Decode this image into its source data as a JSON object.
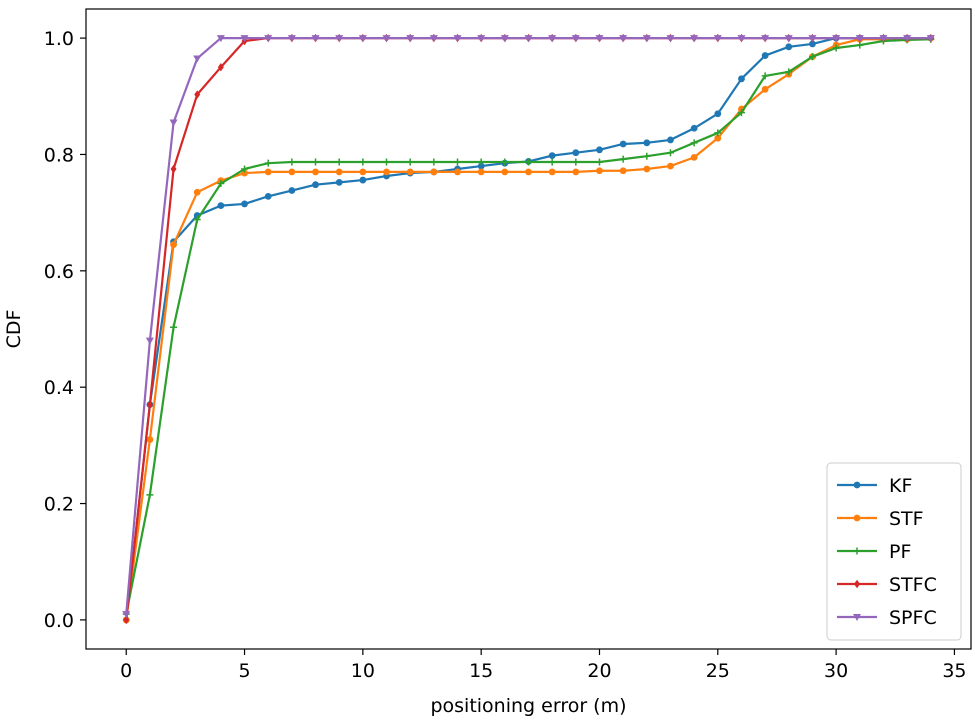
{
  "chart_data": {
    "type": "line",
    "title": "",
    "xlabel": "positioning error (m)",
    "ylabel": "CDF",
    "xlim": [
      -1.7,
      35.7
    ],
    "ylim": [
      -0.05,
      1.05
    ],
    "xticks": [
      0,
      5,
      10,
      15,
      20,
      25,
      30,
      35
    ],
    "yticks": [
      0.0,
      0.2,
      0.4,
      0.6,
      0.8,
      1.0
    ],
    "xtick_labels": [
      "0",
      "5",
      "10",
      "15",
      "20",
      "25",
      "30",
      "35"
    ],
    "ytick_labels": [
      "0.0",
      "0.2",
      "0.4",
      "0.6",
      "0.8",
      "1.0"
    ],
    "legend_position": "lower-right",
    "series": [
      {
        "name": "KF",
        "color": "#1f77b4",
        "marker": "circle",
        "x": [
          0,
          1,
          2,
          3,
          4,
          5,
          6,
          7,
          8,
          9,
          10,
          11,
          12,
          13,
          14,
          15,
          16,
          17,
          18,
          19,
          20,
          21,
          22,
          23,
          24,
          25,
          26,
          27,
          28,
          29,
          30,
          31,
          32,
          33,
          34
        ],
        "y": [
          0.0,
          0.37,
          0.65,
          0.695,
          0.712,
          0.715,
          0.728,
          0.738,
          0.748,
          0.752,
          0.756,
          0.763,
          0.768,
          0.77,
          0.775,
          0.78,
          0.785,
          0.788,
          0.798,
          0.803,
          0.808,
          0.818,
          0.82,
          0.825,
          0.845,
          0.87,
          0.93,
          0.97,
          0.985,
          0.99,
          1.0,
          1.0,
          1.0,
          1.0,
          1.0
        ]
      },
      {
        "name": "STF",
        "color": "#ff7f0e",
        "marker": "circle",
        "x": [
          0,
          1,
          2,
          3,
          4,
          5,
          6,
          7,
          8,
          9,
          10,
          11,
          12,
          13,
          14,
          15,
          16,
          17,
          18,
          19,
          20,
          21,
          22,
          23,
          24,
          25,
          26,
          27,
          28,
          29,
          30,
          31,
          32,
          33,
          34
        ],
        "y": [
          0.0,
          0.31,
          0.645,
          0.735,
          0.755,
          0.768,
          0.77,
          0.77,
          0.77,
          0.77,
          0.77,
          0.77,
          0.77,
          0.77,
          0.77,
          0.77,
          0.77,
          0.77,
          0.77,
          0.77,
          0.772,
          0.772,
          0.775,
          0.78,
          0.795,
          0.828,
          0.878,
          0.912,
          0.938,
          0.968,
          0.988,
          0.998,
          0.998,
          0.998,
          1.0
        ]
      },
      {
        "name": "PF",
        "color": "#2ca02c",
        "marker": "plus",
        "x": [
          0,
          1,
          2,
          3,
          4,
          5,
          6,
          7,
          8,
          9,
          10,
          11,
          12,
          13,
          14,
          15,
          16,
          17,
          18,
          19,
          20,
          21,
          22,
          23,
          24,
          25,
          26,
          27,
          28,
          29,
          30,
          31,
          32,
          33,
          34
        ],
        "y": [
          0.01,
          0.215,
          0.503,
          0.688,
          0.75,
          0.775,
          0.785,
          0.787,
          0.787,
          0.787,
          0.787,
          0.787,
          0.787,
          0.787,
          0.787,
          0.787,
          0.787,
          0.787,
          0.787,
          0.787,
          0.787,
          0.792,
          0.797,
          0.803,
          0.82,
          0.837,
          0.872,
          0.935,
          0.942,
          0.968,
          0.983,
          0.988,
          0.995,
          0.997,
          0.998
        ]
      },
      {
        "name": "STFC",
        "color": "#d62728",
        "marker": "diamond",
        "x": [
          0,
          1,
          2,
          3,
          4,
          5,
          6,
          7,
          8,
          9,
          10,
          11,
          12,
          13,
          14,
          15,
          16,
          17,
          18,
          19,
          20,
          21,
          22,
          23,
          24,
          25,
          26,
          27,
          28,
          29,
          30,
          31,
          32,
          33,
          34
        ],
        "y": [
          0.0,
          0.37,
          0.775,
          0.903,
          0.95,
          0.995,
          1.0,
          1.0,
          1.0,
          1.0,
          1.0,
          1.0,
          1.0,
          1.0,
          1.0,
          1.0,
          1.0,
          1.0,
          1.0,
          1.0,
          1.0,
          1.0,
          1.0,
          1.0,
          1.0,
          1.0,
          1.0,
          1.0,
          1.0,
          1.0,
          1.0,
          1.0,
          1.0,
          1.0,
          1.0
        ]
      },
      {
        "name": "SPFC",
        "color": "#9467bd",
        "marker": "triangle-down",
        "x": [
          0,
          1,
          2,
          3,
          4,
          5,
          6,
          7,
          8,
          9,
          10,
          11,
          12,
          13,
          14,
          15,
          16,
          17,
          18,
          19,
          20,
          21,
          22,
          23,
          24,
          25,
          26,
          27,
          28,
          29,
          30,
          31,
          32,
          33,
          34
        ],
        "y": [
          0.01,
          0.48,
          0.855,
          0.965,
          1.0,
          1.0,
          1.0,
          1.0,
          1.0,
          1.0,
          1.0,
          1.0,
          1.0,
          1.0,
          1.0,
          1.0,
          1.0,
          1.0,
          1.0,
          1.0,
          1.0,
          1.0,
          1.0,
          1.0,
          1.0,
          1.0,
          1.0,
          1.0,
          1.0,
          1.0,
          1.0,
          1.0,
          1.0,
          1.0,
          1.0
        ]
      }
    ]
  }
}
